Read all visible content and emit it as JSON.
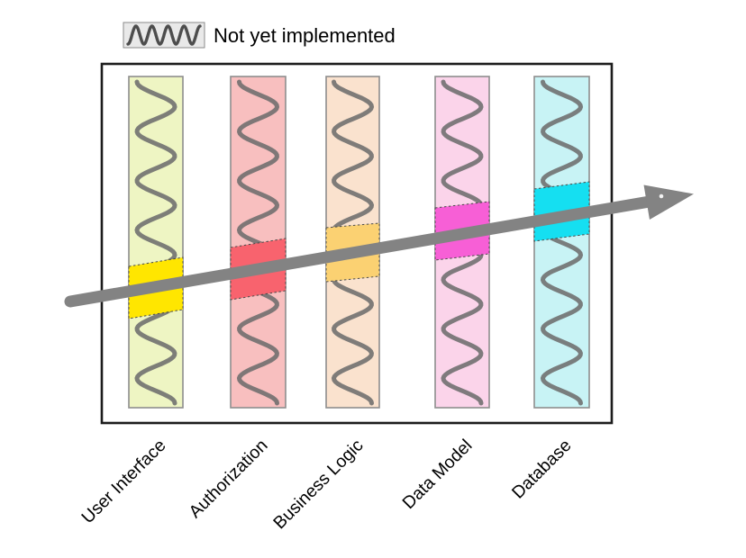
{
  "legend": {
    "label": "Not yet implemented",
    "swatch_bg": "#e9e9e9",
    "swatch_border": "#8a8a8a",
    "swatch_squiggle_color": "#4d4d4d"
  },
  "frame_color": "#1c1c1c",
  "arrow": {
    "color": "#838383"
  },
  "squiggle_color": "#6d6d6d",
  "layers": [
    {
      "label": "User Interface",
      "bar_color": "#eef5c3",
      "highlight_color": "#ffe600",
      "status": "not yet implemented"
    },
    {
      "label": "Authorization",
      "bar_color": "#f8bfbf",
      "highlight_color": "#f8636e",
      "status": "not yet implemented"
    },
    {
      "label": "Business Logic",
      "bar_color": "#fae2ce",
      "highlight_color": "#fbd172",
      "status": "not yet implemented"
    },
    {
      "label": "Data Model",
      "bar_color": "#fbd4ea",
      "highlight_color": "#f75fd6",
      "status": "not yet implemented"
    },
    {
      "label": "Database",
      "bar_color": "#c8f3f5",
      "highlight_color": "#15dff1",
      "status": "not yet implemented"
    }
  ]
}
